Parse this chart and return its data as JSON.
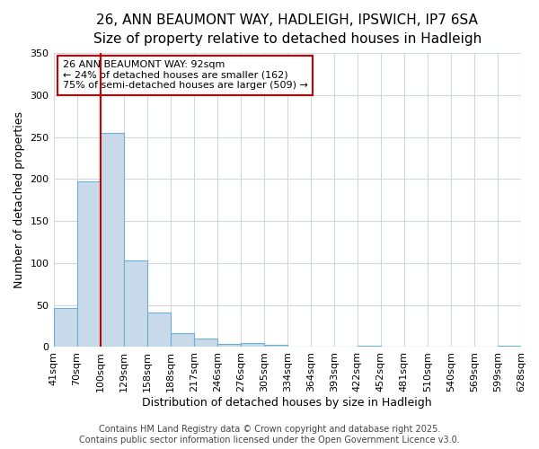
{
  "title_line1": "26, ANN BEAUMONT WAY, HADLEIGH, IPSWICH, IP7 6SA",
  "title_line2": "Size of property relative to detached houses in Hadleigh",
  "xlabel": "Distribution of detached houses by size in Hadleigh",
  "ylabel": "Number of detached properties",
  "bin_labels": [
    "41sqm",
    "70sqm",
    "100sqm",
    "129sqm",
    "158sqm",
    "188sqm",
    "217sqm",
    "246sqm",
    "276sqm",
    "305sqm",
    "334sqm",
    "364sqm",
    "393sqm",
    "422sqm",
    "452sqm",
    "481sqm",
    "510sqm",
    "540sqm",
    "569sqm",
    "599sqm",
    "628sqm"
  ],
  "bar_values": [
    47,
    197,
    255,
    103,
    41,
    17,
    10,
    4,
    5,
    3,
    1,
    0,
    0,
    2,
    0,
    0,
    0,
    0,
    0,
    2
  ],
  "bar_color": "#c8daea",
  "bar_edge_color": "#6baed6",
  "vline_color": "#cc0000",
  "vline_x": 2.0,
  "annotation_text": "26 ANN BEAUMONT WAY: 92sqm\n← 24% of detached houses are smaller (162)\n75% of semi-detached houses are larger (509) →",
  "annotation_box_edgecolor": "#cc0000",
  "ylim": [
    0,
    350
  ],
  "yticks": [
    0,
    50,
    100,
    150,
    200,
    250,
    300,
    350
  ],
  "footer_line1": "Contains HM Land Registry data © Crown copyright and database right 2025.",
  "footer_line2": "Contains public sector information licensed under the Open Government Licence v3.0.",
  "background_color": "#ffffff",
  "grid_color": "#d0d8e0",
  "title1_fontsize": 11,
  "title2_fontsize": 10,
  "axis_label_fontsize": 9,
  "tick_fontsize": 8,
  "annotation_fontsize": 8,
  "footer_fontsize": 7
}
